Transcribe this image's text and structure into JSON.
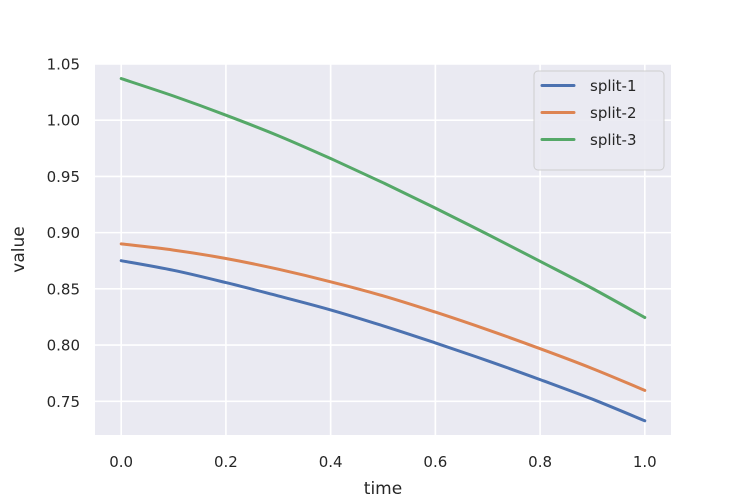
{
  "chart_data": {
    "type": "line",
    "title": "",
    "xlabel": "time",
    "ylabel": "value",
    "xlim": [
      -0.05,
      1.05
    ],
    "ylim": [
      0.72,
      1.05
    ],
    "x_ticks": [
      "0.0",
      "0.2",
      "0.4",
      "0.6",
      "0.8",
      "1.0"
    ],
    "y_ticks": [
      "0.75",
      "0.80",
      "0.85",
      "0.90",
      "0.95",
      "1.00",
      "1.05"
    ],
    "grid": true,
    "legend_position": "top-right",
    "x": [
      0.0,
      0.1,
      0.2,
      0.3,
      0.4,
      0.5,
      0.6,
      0.7,
      0.8,
      0.9,
      1.0
    ],
    "series": [
      {
        "name": "split-1",
        "color": "#4c72b0",
        "values": [
          0.875,
          0.8665,
          0.8556,
          0.8437,
          0.8313,
          0.8171,
          0.8019,
          0.786,
          0.7693,
          0.7518,
          0.7326
        ]
      },
      {
        "name": "split-2",
        "color": "#dd8452",
        "values": [
          0.89,
          0.8845,
          0.877,
          0.8675,
          0.8563,
          0.8438,
          0.8293,
          0.8136,
          0.7968,
          0.7791,
          0.7597
        ]
      },
      {
        "name": "split-3",
        "color": "#55a868",
        "values": [
          1.037,
          1.0215,
          1.0045,
          0.9862,
          0.9659,
          0.9444,
          0.9218,
          0.8984,
          0.8745,
          0.8503,
          0.8245
        ]
      }
    ]
  }
}
